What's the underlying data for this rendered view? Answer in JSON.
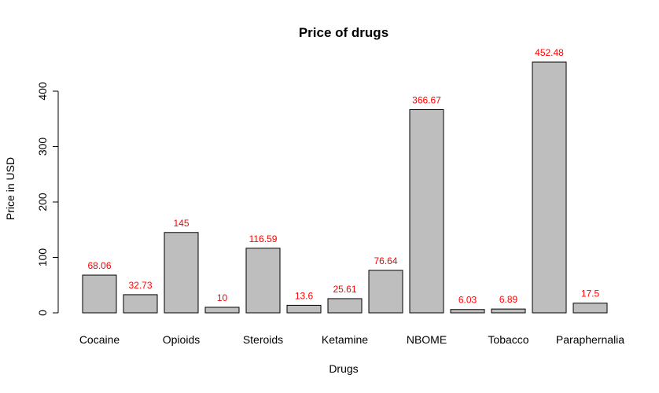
{
  "chart_data": {
    "type": "bar",
    "title": "Price of drugs",
    "xlabel": "Drugs",
    "ylabel": "Price in USD",
    "categories": [
      "Cocaine",
      "",
      "Opioids",
      "",
      "Steroids",
      "",
      "Ketamine",
      "",
      "NBOME",
      "",
      "Tobacco",
      "",
      "Paraphernalia"
    ],
    "values": [
      68.06,
      32.73,
      145,
      10,
      116.59,
      13.6,
      25.61,
      76.64,
      366.67,
      6.03,
      6.89,
      452.48,
      17.5
    ],
    "data_labels": [
      "68.06",
      "32.73",
      "145",
      "10",
      "116.59",
      "13.6",
      "25.61",
      "76.64",
      "366.67",
      "6.03",
      "6.89",
      "452.48",
      "17.5"
    ],
    "yticks": [
      0,
      100,
      200,
      300,
      400
    ],
    "ylim": [
      0,
      460
    ],
    "grid": false,
    "legend": "none",
    "colors": {
      "bar_fill": "#bebebe",
      "bar_stroke": "#000000",
      "label": "#ff0000"
    }
  }
}
